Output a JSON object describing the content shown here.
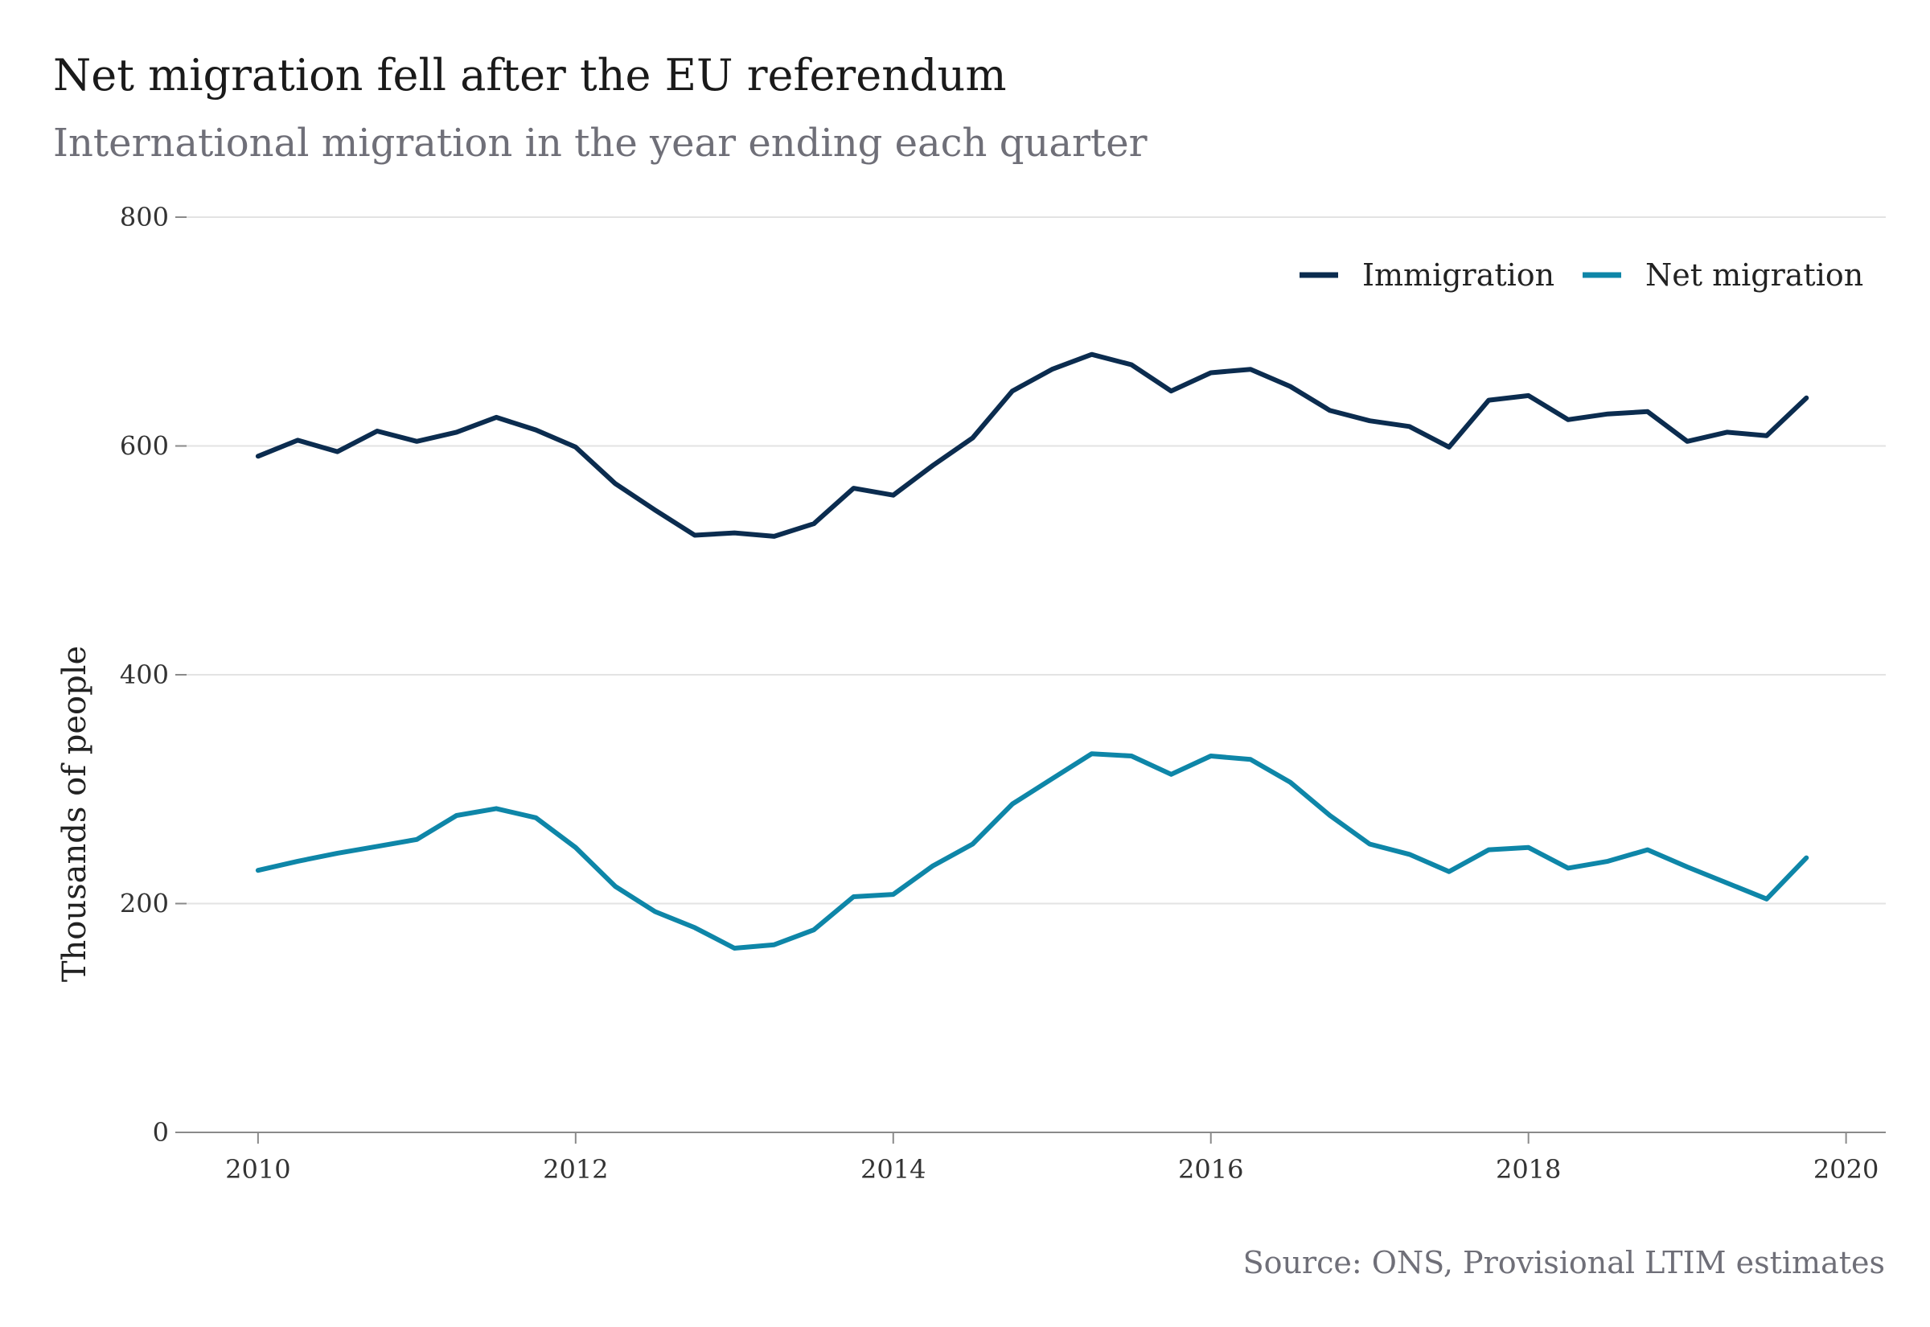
{
  "chart_data": {
    "type": "line",
    "title": "Net migration fell after the EU referendum",
    "subtitle": "International migration in the year ending each quarter",
    "source": "Source: ONS, Provisional LTIM estimates",
    "ylabel": "Thousands of people",
    "xlabel": "",
    "xlim": [
      2009.55,
      2020.25
    ],
    "ylim": [
      0,
      800
    ],
    "x_ticks": [
      2010,
      2012,
      2014,
      2016,
      2018,
      2020
    ],
    "y_ticks": [
      0,
      200,
      400,
      600,
      800
    ],
    "grid": "horizontal",
    "legend_position": "top-right",
    "x": [
      2010,
      2010.25,
      2010.5,
      2010.75,
      2011,
      2011.25,
      2011.5,
      2011.75,
      2012,
      2012.25,
      2012.5,
      2012.75,
      2013,
      2013.25,
      2013.5,
      2013.75,
      2014,
      2014.25,
      2014.5,
      2014.75,
      2015,
      2015.25,
      2015.5,
      2015.75,
      2016,
      2016.25,
      2016.5,
      2016.75,
      2017,
      2017.25,
      2017.5,
      2017.75,
      2018,
      2018.25,
      2018.5,
      2018.75,
      2019,
      2019.25,
      2019.5,
      2019.75
    ],
    "series": [
      {
        "name": "Immigration",
        "color": "#0b2c4f",
        "values": [
          591,
          605,
          595,
          613,
          604,
          612,
          625,
          614,
          599,
          567,
          544,
          522,
          524,
          521,
          532,
          563,
          557,
          583,
          607,
          648,
          667,
          680,
          671,
          648,
          664,
          667,
          652,
          631,
          622,
          617,
          599,
          640,
          644,
          623,
          628,
          630,
          604,
          612,
          609,
          642
        ]
      },
      {
        "name": "Net migration",
        "color": "#0e86a8",
        "values": [
          229,
          237,
          244,
          250,
          256,
          277,
          283,
          275,
          249,
          215,
          193,
          179,
          161,
          164,
          177,
          206,
          208,
          233,
          252,
          287,
          309,
          331,
          329,
          313,
          329,
          326,
          306,
          277,
          252,
          243,
          228,
          247,
          249,
          231,
          237,
          247,
          232,
          218,
          204,
          240
        ]
      }
    ]
  }
}
